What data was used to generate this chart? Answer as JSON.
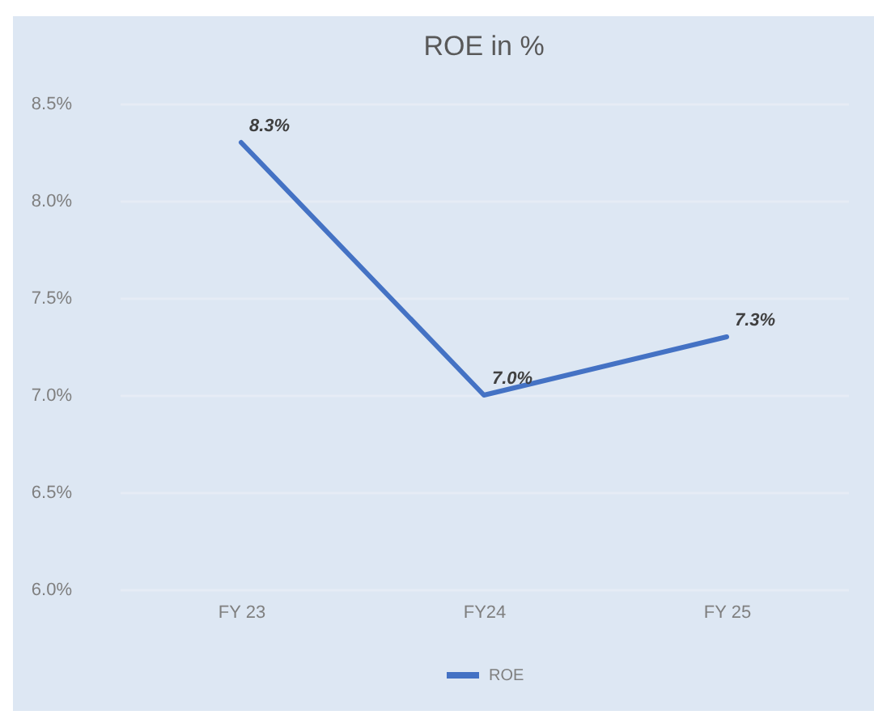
{
  "chart_data": {
    "type": "line",
    "title": "ROE in %",
    "categories": [
      "FY 23",
      "FY24",
      "FY 25"
    ],
    "series": [
      {
        "name": "ROE",
        "color": "#4472c4",
        "values": [
          8.3,
          7.0,
          7.3
        ],
        "value_labels": [
          "8.3%",
          "7.0%",
          "7.3%"
        ]
      }
    ],
    "ylim": [
      6.0,
      8.5
    ],
    "yticks": [
      {
        "value": 6.0,
        "label": "6.0%"
      },
      {
        "value": 6.5,
        "label": "6.5%"
      },
      {
        "value": 7.0,
        "label": "7.0%"
      },
      {
        "value": 7.5,
        "label": "7.5%"
      },
      {
        "value": 8.0,
        "label": "8.0%"
      },
      {
        "value": 8.5,
        "label": "8.5%"
      }
    ],
    "grid": "y",
    "legend": "bottom",
    "marker": "none",
    "line_style": "solid"
  }
}
